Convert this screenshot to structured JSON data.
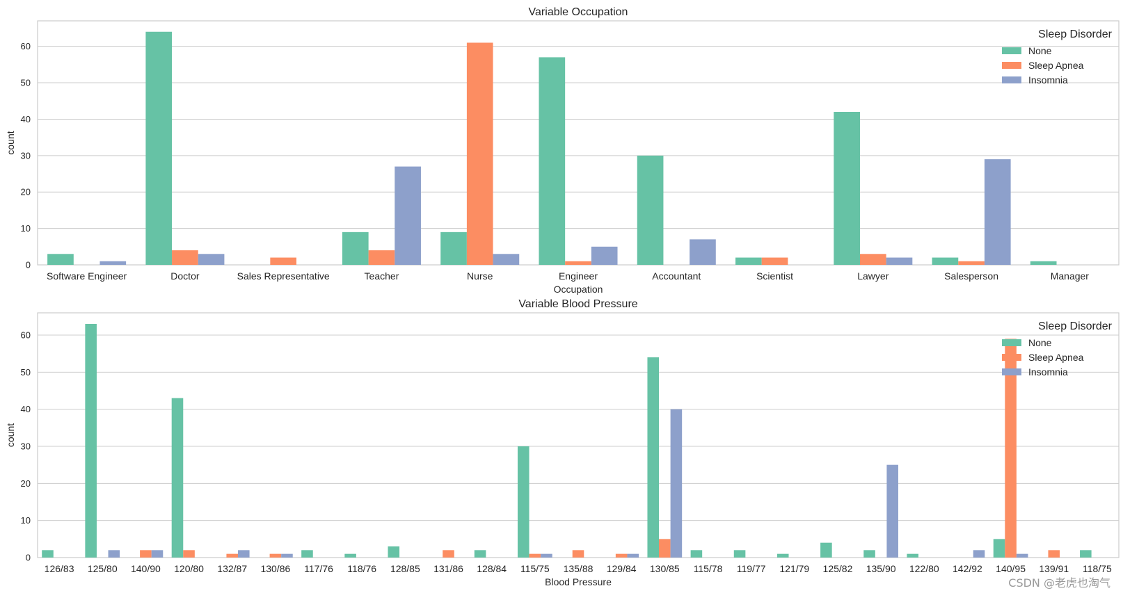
{
  "colors": {
    "None": "#66c2a5",
    "Sleep Apnea": "#fc8d62",
    "Insomnia": "#8da0cb",
    "grid": "#cccccc",
    "frame": "#cccccc",
    "text": "#262626"
  },
  "watermark": "CSDN @老虎也淘气",
  "chart_data": [
    {
      "type": "bar",
      "title": "Variable Occupation",
      "xlabel": "Occupation",
      "ylabel": "count",
      "ylim": [
        0,
        67
      ],
      "yticks": [
        0,
        10,
        20,
        30,
        40,
        50,
        60
      ],
      "grid": true,
      "legend": {
        "title": "Sleep Disorder",
        "position": "top-right"
      },
      "categories": [
        "Software Engineer",
        "Doctor",
        "Sales Representative",
        "Teacher",
        "Nurse",
        "Engineer",
        "Accountant",
        "Scientist",
        "Lawyer",
        "Salesperson",
        "Manager"
      ],
      "series": [
        {
          "name": "None",
          "values": [
            3,
            64,
            0,
            9,
            9,
            57,
            30,
            2,
            42,
            2,
            1
          ]
        },
        {
          "name": "Sleep Apnea",
          "values": [
            0,
            4,
            2,
            4,
            61,
            1,
            0,
            2,
            3,
            1,
            0
          ]
        },
        {
          "name": "Insomnia",
          "values": [
            1,
            3,
            0,
            27,
            3,
            5,
            7,
            0,
            2,
            29,
            0
          ]
        }
      ]
    },
    {
      "type": "bar",
      "title": "Variable Blood Pressure",
      "xlabel": "Blood Pressure",
      "ylabel": "count",
      "ylim": [
        0,
        66
      ],
      "yticks": [
        0,
        10,
        20,
        30,
        40,
        50,
        60
      ],
      "grid": true,
      "legend": {
        "title": "Sleep Disorder",
        "position": "top-right"
      },
      "categories": [
        "126/83",
        "125/80",
        "140/90",
        "120/80",
        "132/87",
        "130/86",
        "117/76",
        "118/76",
        "128/85",
        "131/86",
        "128/84",
        "115/75",
        "135/88",
        "129/84",
        "130/85",
        "115/78",
        "119/77",
        "121/79",
        "125/82",
        "135/90",
        "122/80",
        "142/92",
        "140/95",
        "139/91",
        "118/75"
      ],
      "series": [
        {
          "name": "None",
          "values": [
            2,
            63,
            0,
            43,
            0,
            0,
            2,
            1,
            3,
            0,
            2,
            30,
            0,
            0,
            54,
            2,
            2,
            1,
            4,
            2,
            1,
            0,
            5,
            0,
            2
          ]
        },
        {
          "name": "Sleep Apnea",
          "values": [
            0,
            0,
            2,
            2,
            1,
            1,
            0,
            0,
            0,
            2,
            0,
            1,
            2,
            1,
            5,
            0,
            0,
            0,
            0,
            0,
            0,
            0,
            59,
            2,
            0
          ]
        },
        {
          "name": "Insomnia",
          "values": [
            0,
            2,
            2,
            0,
            2,
            1,
            0,
            0,
            0,
            0,
            0,
            1,
            0,
            1,
            40,
            0,
            0,
            0,
            0,
            25,
            0,
            2,
            1,
            0,
            0
          ]
        }
      ]
    }
  ]
}
